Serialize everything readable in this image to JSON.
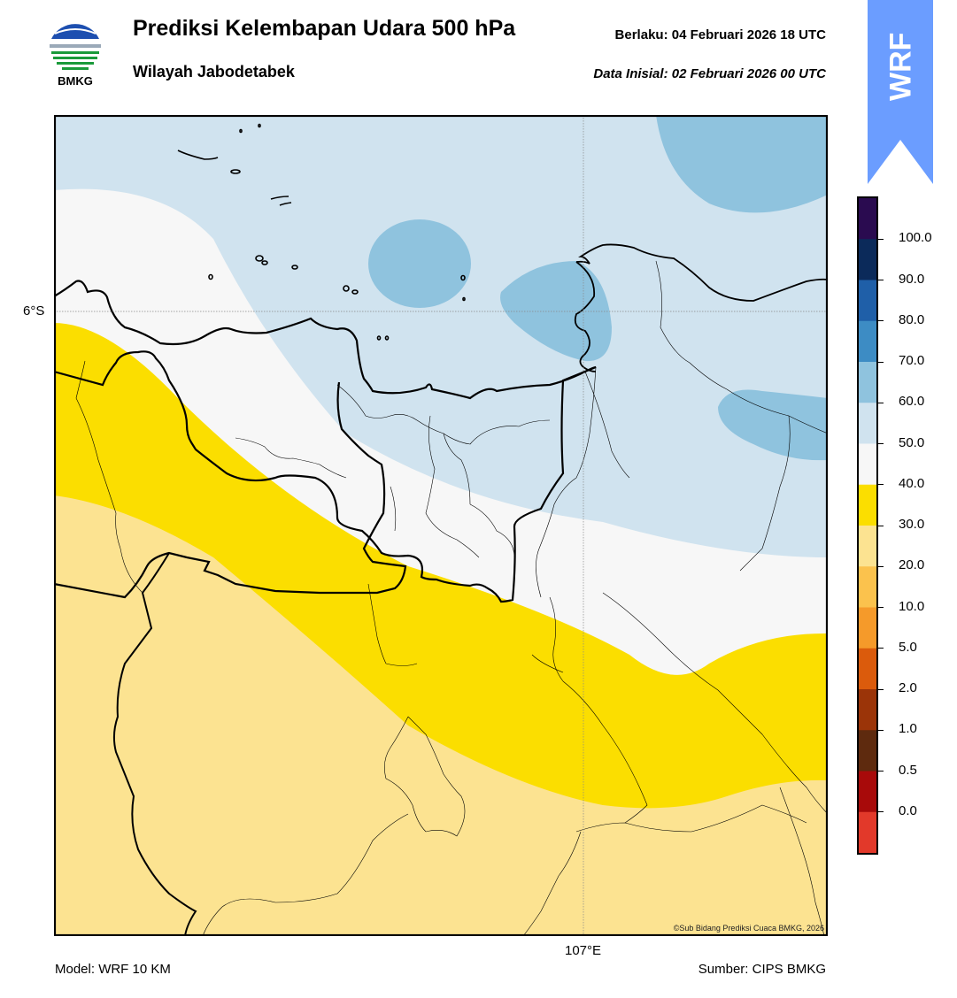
{
  "header": {
    "title": "Prediksi Kelembapan Udara 500 hPa",
    "subtitle": "Wilayah Jabodetabek",
    "valid_label": "Berlaku:  04 Februari 2026 18 UTC",
    "init_label": "Data Inisial:  02 Februari 2026 00 UTC"
  },
  "logo": {
    "name": "bmkg-logo",
    "text": "BMKG"
  },
  "badge": {
    "text": "WRF",
    "color": "#6b9dff"
  },
  "map": {
    "lat_label": "6°S",
    "lon_label": "107°E",
    "copyright": "©Sub Bidang Prediksi Cuaca BMKG, 2026"
  },
  "colorbar": {
    "labels": [
      "100.0",
      "90.0",
      "80.0",
      "70.0",
      "60.0",
      "50.0",
      "40.0",
      "30.0",
      "20.0",
      "10.0",
      "5.0",
      "2.0",
      "1.0",
      "0.5",
      "0.0"
    ],
    "colors": [
      "#2a0b50",
      "#0b2a5a",
      "#1f5fa8",
      "#3d8cc4",
      "#8fc3de",
      "#d0e3ef",
      "#f7f7f7",
      "#fbde00",
      "#fce391",
      "#fbc24d",
      "#f59a2a",
      "#db5b0c",
      "#9b3408",
      "#5e2a0e",
      "#a80a0a",
      "#e2392a"
    ]
  },
  "legend_colors": {
    "humidity_20_30": "#fce391",
    "humidity_30_40": "#fbde00",
    "humidity_40_50": "#f7f7f7",
    "humidity_50_60": "#d0e3ef",
    "humidity_60_70": "#8fc3de"
  },
  "footer": {
    "model": "Model: WRF 10 KM",
    "source": "Sumber: CIPS BMKG"
  }
}
